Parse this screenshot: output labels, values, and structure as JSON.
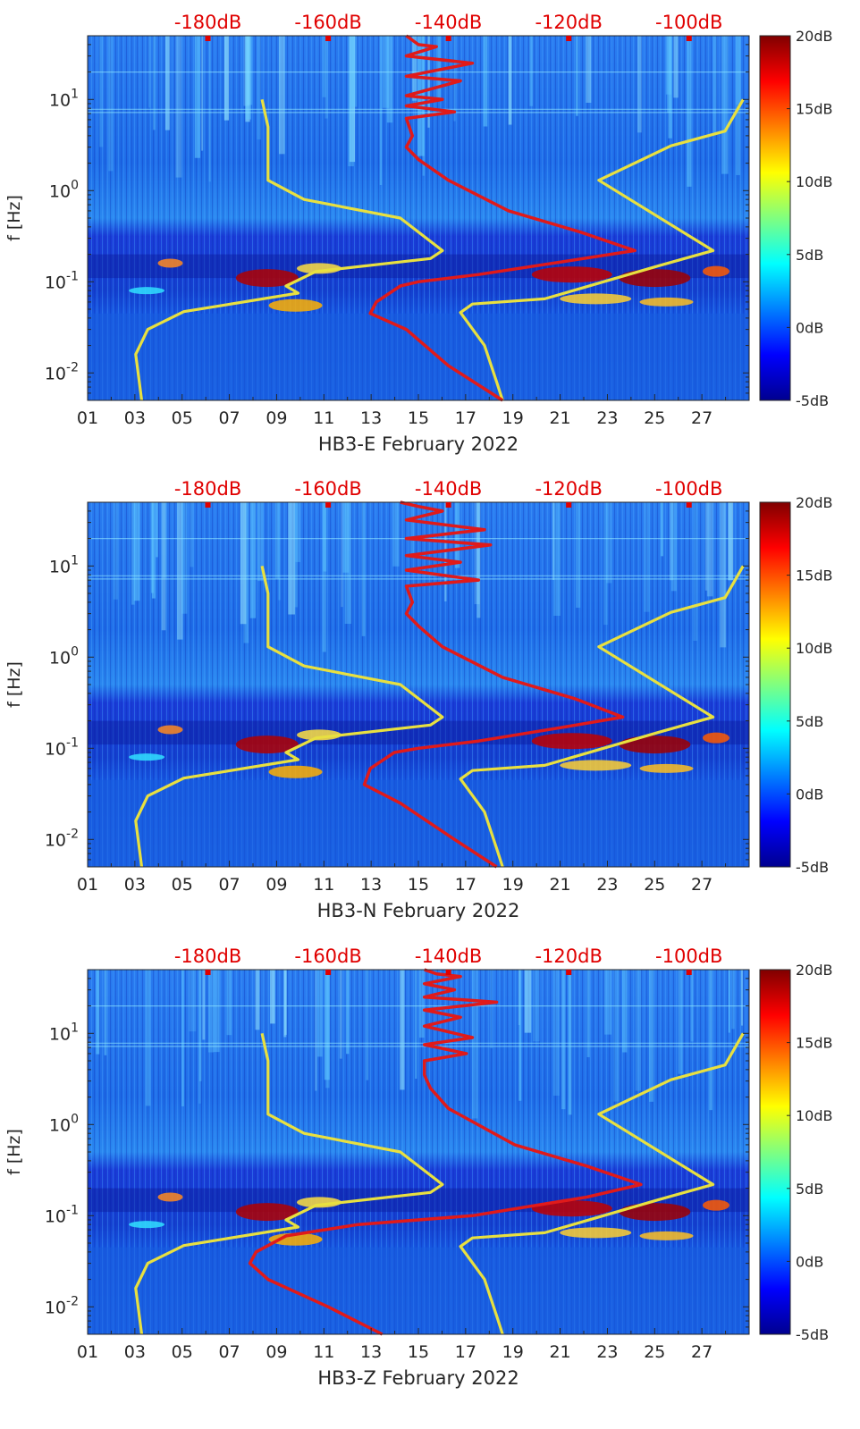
{
  "colors": {
    "colormap": "jet",
    "model_noise_curve": "#e8e040",
    "station_noise_curve": "#e01a1a",
    "top_axis_text": "#e00000"
  },
  "chart_data": [
    {
      "type": "heatmap",
      "xlabel": "HB3-E February 2022",
      "ylabel": "f [Hz]",
      "x_tick_labels": [
        "01",
        "03",
        "05",
        "07",
        "09",
        "11",
        "13",
        "15",
        "17",
        "19",
        "21",
        "23",
        "25",
        "27"
      ],
      "x_range_days": [
        1,
        29
      ],
      "y_scale": "log",
      "y_range_hz": [
        0.005,
        50
      ],
      "y_tick_labels": [
        {
          "base": "10",
          "exp": "1"
        },
        {
          "base": "10",
          "exp": "0"
        },
        {
          "base": "10",
          "exp": "-1"
        },
        {
          "base": "10",
          "exp": "-2"
        }
      ],
      "top_axis_labels": [
        "-180dB",
        "-160dB",
        "-140dB",
        "-120dB",
        "-100dB"
      ],
      "top_axis_range_db": [
        -200,
        -90
      ],
      "colorbar": {
        "labels": [
          "20dB",
          "15dB",
          "10dB",
          "5dB",
          "0dB",
          "-5dB"
        ],
        "range_db": [
          -5,
          20
        ]
      },
      "series": [
        {
          "role": "lower model curve",
          "points_db_hz": [
            [
              -171,
              10
            ],
            [
              -170,
              5
            ],
            [
              -170,
              2.4
            ],
            [
              -170,
              1.3
            ],
            [
              -164,
              0.8
            ],
            [
              -148,
              0.5
            ],
            [
              -141,
              0.22
            ],
            [
              -143,
              0.18
            ],
            [
              -162,
              0.13
            ],
            [
              -167,
              0.09
            ],
            [
              -165,
              0.075
            ],
            [
              -184,
              0.047
            ],
            [
              -190,
              0.03
            ],
            [
              -192,
              0.016
            ],
            [
              -191,
              0.005
            ]
          ]
        },
        {
          "role": "upper model curve",
          "points_db_hz": [
            [
              -91,
              10
            ],
            [
              -94,
              4.5
            ],
            [
              -103,
              3.1
            ],
            [
              -115,
              1.3
            ],
            [
              -96,
              0.22
            ],
            [
              -105,
              0.15
            ],
            [
              -124,
              0.065
            ],
            [
              -136,
              0.057
            ],
            [
              -138,
              0.046
            ],
            [
              -134,
              0.02
            ],
            [
              -132,
              0.008
            ],
            [
              -131,
              0.005
            ]
          ]
        },
        {
          "role": "station noise curve",
          "points_db_hz": [
            [
              -147,
              50
            ],
            [
              -145,
              40
            ],
            [
              -142,
              38
            ],
            [
              -147,
              30
            ],
            [
              -136,
              25
            ],
            [
              -147,
              18
            ],
            [
              -138,
              16
            ],
            [
              -147,
              11
            ],
            [
              -141,
              10
            ],
            [
              -147,
              8.5
            ],
            [
              -139,
              7.3
            ],
            [
              -147,
              6.2
            ],
            [
              -146,
              4
            ],
            [
              -147,
              3
            ],
            [
              -145,
              2.2
            ],
            [
              -140,
              1.3
            ],
            [
              -130,
              0.6
            ],
            [
              -118,
              0.35
            ],
            [
              -109,
              0.22
            ],
            [
              -120,
              0.17
            ],
            [
              -135,
              0.12
            ],
            [
              -145,
              0.1
            ],
            [
              -148,
              0.09
            ],
            [
              -152,
              0.06
            ],
            [
              -153,
              0.045
            ],
            [
              -147,
              0.03
            ],
            [
              -140,
              0.012
            ],
            [
              -131,
              0.005
            ]
          ]
        }
      ]
    },
    {
      "type": "heatmap",
      "xlabel": "HB3-N February 2022",
      "ylabel": "f [Hz]",
      "x_tick_labels": [
        "01",
        "03",
        "05",
        "07",
        "09",
        "11",
        "13",
        "15",
        "17",
        "19",
        "21",
        "23",
        "25",
        "27"
      ],
      "x_range_days": [
        1,
        29
      ],
      "y_scale": "log",
      "y_range_hz": [
        0.005,
        50
      ],
      "y_tick_labels": [
        {
          "base": "10",
          "exp": "1"
        },
        {
          "base": "10",
          "exp": "0"
        },
        {
          "base": "10",
          "exp": "-1"
        },
        {
          "base": "10",
          "exp": "-2"
        }
      ],
      "top_axis_labels": [
        "-180dB",
        "-160dB",
        "-140dB",
        "-120dB",
        "-100dB"
      ],
      "top_axis_range_db": [
        -200,
        -90
      ],
      "colorbar": {
        "labels": [
          "20dB",
          "15dB",
          "10dB",
          "5dB",
          "0dB",
          "-5dB"
        ],
        "range_db": [
          -5,
          20
        ]
      },
      "series": [
        {
          "role": "lower model curve",
          "points_db_hz": [
            [
              -171,
              10
            ],
            [
              -170,
              5
            ],
            [
              -170,
              2.4
            ],
            [
              -170,
              1.3
            ],
            [
              -164,
              0.8
            ],
            [
              -148,
              0.5
            ],
            [
              -141,
              0.22
            ],
            [
              -143,
              0.18
            ],
            [
              -162,
              0.13
            ],
            [
              -167,
              0.09
            ],
            [
              -165,
              0.075
            ],
            [
              -184,
              0.047
            ],
            [
              -190,
              0.03
            ],
            [
              -192,
              0.016
            ],
            [
              -191,
              0.005
            ]
          ]
        },
        {
          "role": "upper model curve",
          "points_db_hz": [
            [
              -91,
              10
            ],
            [
              -94,
              4.5
            ],
            [
              -103,
              3.1
            ],
            [
              -115,
              1.3
            ],
            [
              -96,
              0.22
            ],
            [
              -105,
              0.15
            ],
            [
              -124,
              0.065
            ],
            [
              -136,
              0.057
            ],
            [
              -138,
              0.046
            ],
            [
              -134,
              0.02
            ],
            [
              -132,
              0.008
            ],
            [
              -131,
              0.005
            ]
          ]
        },
        {
          "role": "station noise curve",
          "points_db_hz": [
            [
              -148,
              50
            ],
            [
              -145,
              45
            ],
            [
              -141,
              40
            ],
            [
              -147,
              32
            ],
            [
              -134,
              25
            ],
            [
              -147,
              20
            ],
            [
              -133,
              17
            ],
            [
              -147,
              13
            ],
            [
              -138,
              11
            ],
            [
              -147,
              9
            ],
            [
              -135,
              7
            ],
            [
              -147,
              6
            ],
            [
              -146,
              4
            ],
            [
              -147,
              3
            ],
            [
              -145,
              2.2
            ],
            [
              -141,
              1.3
            ],
            [
              -131,
              0.6
            ],
            [
              -119,
              0.35
            ],
            [
              -111,
              0.22
            ],
            [
              -121,
              0.17
            ],
            [
              -135,
              0.12
            ],
            [
              -145,
              0.1
            ],
            [
              -149,
              0.09
            ],
            [
              -153,
              0.06
            ],
            [
              -154,
              0.04
            ],
            [
              -148,
              0.025
            ],
            [
              -139,
              0.01
            ],
            [
              -132,
              0.005
            ]
          ]
        }
      ]
    },
    {
      "type": "heatmap",
      "xlabel": "HB3-Z February 2022",
      "ylabel": "f [Hz]",
      "x_tick_labels": [
        "01",
        "03",
        "05",
        "07",
        "09",
        "11",
        "13",
        "15",
        "17",
        "19",
        "21",
        "23",
        "25",
        "27"
      ],
      "x_range_days": [
        1,
        29
      ],
      "y_scale": "log",
      "y_range_hz": [
        0.005,
        50
      ],
      "y_tick_labels": [
        {
          "base": "10",
          "exp": "1"
        },
        {
          "base": "10",
          "exp": "0"
        },
        {
          "base": "10",
          "exp": "-1"
        },
        {
          "base": "10",
          "exp": "-2"
        }
      ],
      "top_axis_labels": [
        "-180dB",
        "-160dB",
        "-140dB",
        "-120dB",
        "-100dB"
      ],
      "top_axis_range_db": [
        -200,
        -90
      ],
      "colorbar": {
        "labels": [
          "20dB",
          "15dB",
          "10dB",
          "5dB",
          "0dB",
          "-5dB"
        ],
        "range_db": [
          -5,
          20
        ]
      },
      "series": [
        {
          "role": "lower model curve",
          "points_db_hz": [
            [
              -171,
              10
            ],
            [
              -170,
              5
            ],
            [
              -170,
              2.4
            ],
            [
              -170,
              1.3
            ],
            [
              -164,
              0.8
            ],
            [
              -148,
              0.5
            ],
            [
              -141,
              0.22
            ],
            [
              -143,
              0.18
            ],
            [
              -162,
              0.13
            ],
            [
              -167,
              0.09
            ],
            [
              -165,
              0.075
            ],
            [
              -184,
              0.047
            ],
            [
              -190,
              0.03
            ],
            [
              -192,
              0.016
            ],
            [
              -191,
              0.005
            ]
          ]
        },
        {
          "role": "upper model curve",
          "points_db_hz": [
            [
              -91,
              10
            ],
            [
              -94,
              4.5
            ],
            [
              -103,
              3.1
            ],
            [
              -115,
              1.3
            ],
            [
              -96,
              0.22
            ],
            [
              -105,
              0.15
            ],
            [
              -124,
              0.065
            ],
            [
              -136,
              0.057
            ],
            [
              -138,
              0.046
            ],
            [
              -134,
              0.02
            ],
            [
              -132,
              0.008
            ],
            [
              -131,
              0.005
            ]
          ]
        },
        {
          "role": "station noise curve",
          "points_db_hz": [
            [
              -144,
              50
            ],
            [
              -142,
              45
            ],
            [
              -138,
              42
            ],
            [
              -144,
              35
            ],
            [
              -139,
              30
            ],
            [
              -144,
              25
            ],
            [
              -132,
              22
            ],
            [
              -144,
              18
            ],
            [
              -138,
              15
            ],
            [
              -144,
              12
            ],
            [
              -136,
              9
            ],
            [
              -144,
              7.5
            ],
            [
              -137,
              6
            ],
            [
              -144,
              5
            ],
            [
              -144,
              3.5
            ],
            [
              -143,
              2.5
            ],
            [
              -140,
              1.5
            ],
            [
              -129,
              0.6
            ],
            [
              -117,
              0.35
            ],
            [
              -108,
              0.22
            ],
            [
              -117,
              0.16
            ],
            [
              -136,
              0.1
            ],
            [
              -155,
              0.08
            ],
            [
              -167,
              0.06
            ],
            [
              -172,
              0.04
            ],
            [
              -173,
              0.03
            ],
            [
              -170,
              0.02
            ],
            [
              -160,
              0.01
            ],
            [
              -151,
              0.005
            ]
          ]
        }
      ]
    }
  ]
}
